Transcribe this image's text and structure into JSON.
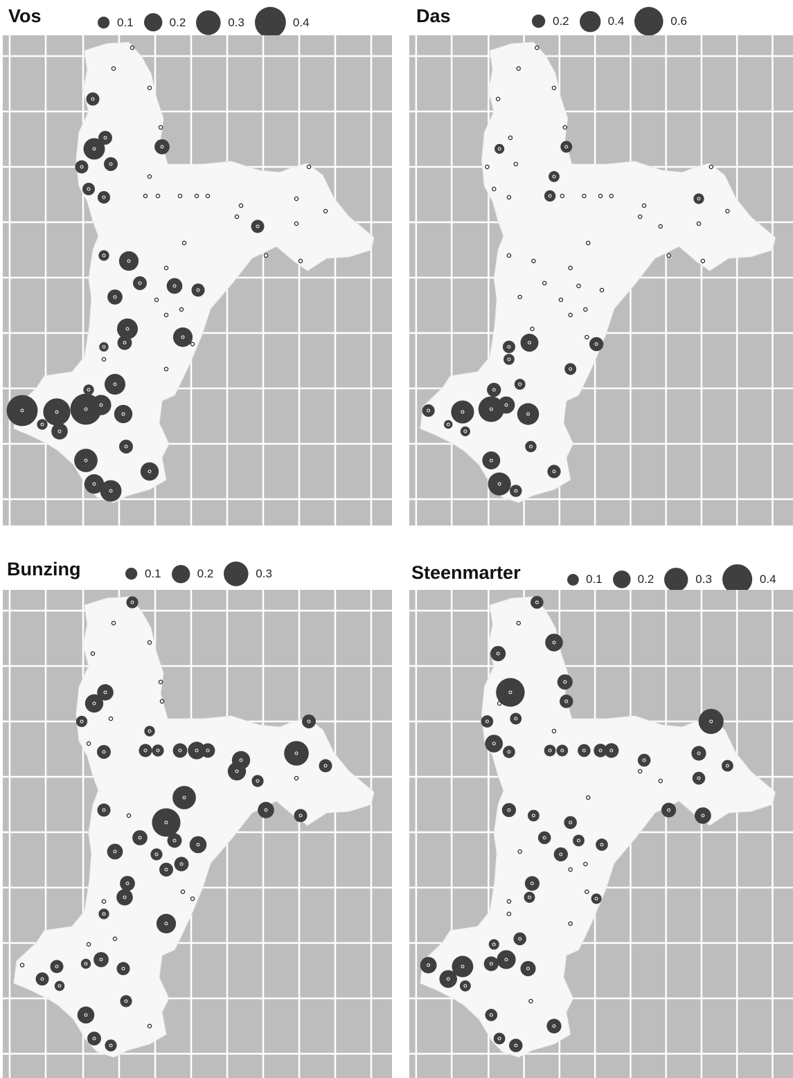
{
  "panels": [
    {
      "key": "vos",
      "title": "Vos",
      "legend": [
        {
          "label": "0.1",
          "value": 0.1
        },
        {
          "label": "0.2",
          "value": 0.2
        },
        {
          "label": "0.3",
          "value": 0.3
        },
        {
          "label": "0.4",
          "value": 0.4
        }
      ]
    },
    {
      "key": "das",
      "title": "Das",
      "legend": [
        {
          "label": "0.2",
          "value": 0.2
        },
        {
          "label": "0.4",
          "value": 0.4
        },
        {
          "label": "0.6",
          "value": 0.6
        }
      ]
    },
    {
      "key": "bunzing",
      "title": "Bunzing",
      "legend": [
        {
          "label": "0.1",
          "value": 0.1
        },
        {
          "label": "0.2",
          "value": 0.2
        },
        {
          "label": "0.3",
          "value": 0.3
        }
      ]
    },
    {
      "key": "steenmarter",
      "title": "Steenmarter",
      "legend": [
        {
          "label": "0.1",
          "value": 0.1
        },
        {
          "label": "0.2",
          "value": 0.2
        },
        {
          "label": "0.3",
          "value": 0.3
        },
        {
          "label": "0.4",
          "value": 0.4
        }
      ]
    }
  ],
  "colors": {
    "panel_background": "#bdbdbd",
    "grid": "#ffffff",
    "region": "#f7f7f7",
    "symbol": "#3f3f3f",
    "empty_site": "#ffffff"
  }
}
